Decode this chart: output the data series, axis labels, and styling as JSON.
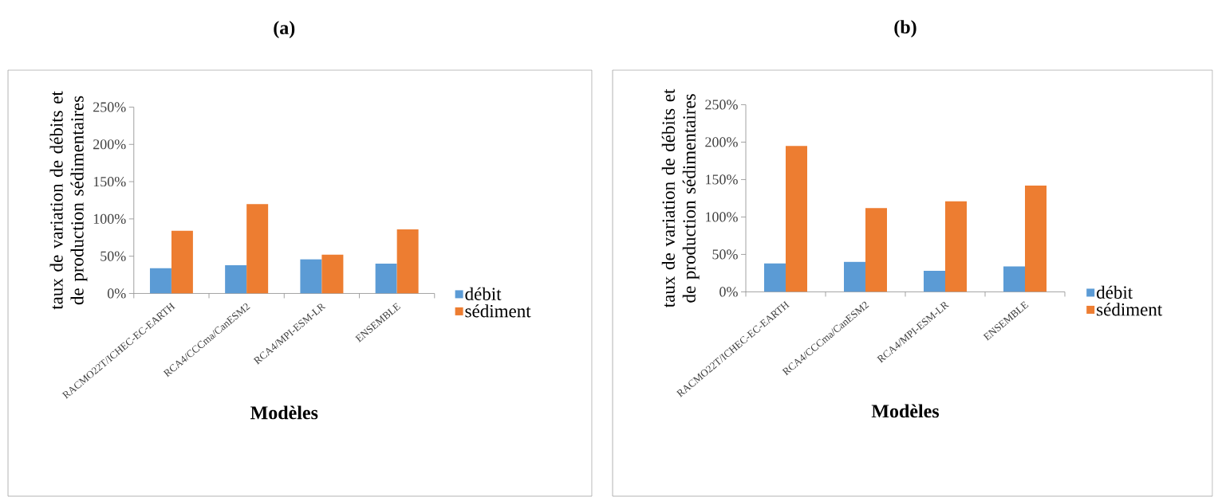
{
  "chart_data": [
    {
      "type": "bar",
      "title": "(a)",
      "xlabel": "Modèles",
      "ylabel": "taux de variation de débits et de production sédimentaires",
      "categories": [
        "RACMO22T/ICHEC-EC-EARTH",
        "RCA4/CCCma/CanESM2",
        "RCA4/MPI-ESM-LR",
        "ENSEMBLE"
      ],
      "series": [
        {
          "name": "débit",
          "color": "#5b9bd5",
          "values": [
            34,
            38,
            46,
            40
          ]
        },
        {
          "name": "sédiment",
          "color": "#ed7d31",
          "values": [
            84,
            120,
            52,
            86
          ]
        }
      ],
      "ylim": [
        0,
        250
      ],
      "yticks": [
        {
          "value": 0,
          "label": "0%"
        },
        {
          "value": 50,
          "label": "50%"
        },
        {
          "value": 100,
          "label": "100%"
        },
        {
          "value": 150,
          "label": "150%"
        },
        {
          "value": 200,
          "label": "200%"
        },
        {
          "value": 250,
          "label": "250%"
        }
      ],
      "legend": "right"
    },
    {
      "type": "bar",
      "title": "(b)",
      "xlabel": "Modèles",
      "ylabel": "taux de variation de débits et de production sédimentaires",
      "categories": [
        "RACMO22T/ICHEC-EC-EARTH",
        "RCA4/CCCma/CanESM2",
        "RCA4/MPI-ESM-LR",
        "ENSEMBLE"
      ],
      "series": [
        {
          "name": "débit",
          "color": "#5b9bd5",
          "values": [
            38,
            40,
            28,
            34
          ]
        },
        {
          "name": "sédiment",
          "color": "#ed7d31",
          "values": [
            195,
            112,
            121,
            142
          ]
        }
      ],
      "ylim": [
        0,
        250
      ],
      "yticks": [
        {
          "value": 0,
          "label": "0%"
        },
        {
          "value": 50,
          "label": "50%"
        },
        {
          "value": 100,
          "label": "100%"
        },
        {
          "value": 150,
          "label": "150%"
        },
        {
          "value": 200,
          "label": "200%"
        },
        {
          "value": 250,
          "label": "250%"
        }
      ],
      "legend": "right"
    }
  ]
}
